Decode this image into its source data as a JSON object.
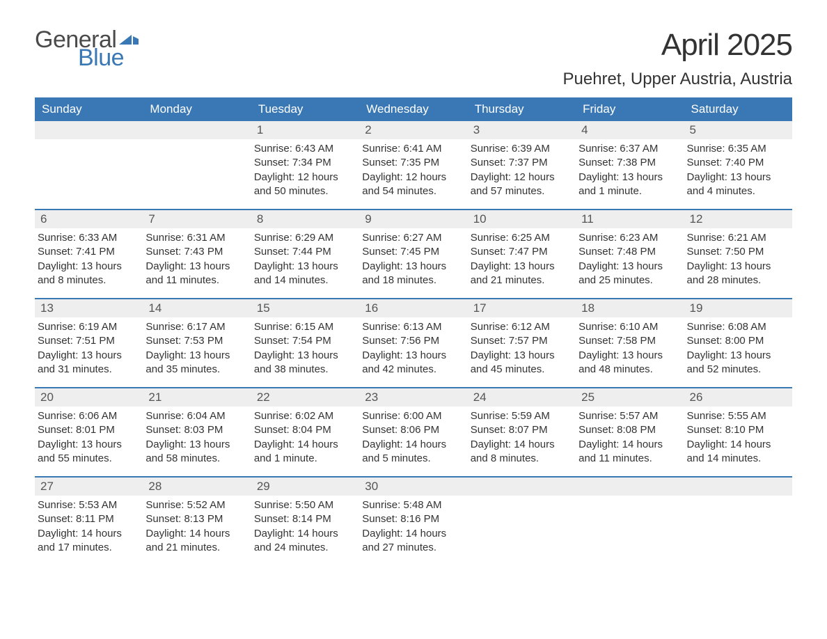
{
  "logo": {
    "text1": "General",
    "text2": "Blue",
    "flag_color": "#3a78b5"
  },
  "title": "April 2025",
  "location": "Puehret, Upper Austria, Austria",
  "colors": {
    "header_bg": "#3a78b5",
    "date_bar_bg": "#eeeeee",
    "text": "#333333",
    "header_text": "#ffffff",
    "week_divider": "#3a78b5"
  },
  "fonts": {
    "body_size": 15,
    "title_size": 44,
    "location_size": 24,
    "header_size": 17,
    "date_size": 17
  },
  "day_names": [
    "Sunday",
    "Monday",
    "Tuesday",
    "Wednesday",
    "Thursday",
    "Friday",
    "Saturday"
  ],
  "weeks": [
    [
      {
        "date": "",
        "lines": []
      },
      {
        "date": "",
        "lines": []
      },
      {
        "date": "1",
        "lines": [
          "Sunrise: 6:43 AM",
          "Sunset: 7:34 PM",
          "Daylight: 12 hours and 50 minutes."
        ]
      },
      {
        "date": "2",
        "lines": [
          "Sunrise: 6:41 AM",
          "Sunset: 7:35 PM",
          "Daylight: 12 hours and 54 minutes."
        ]
      },
      {
        "date": "3",
        "lines": [
          "Sunrise: 6:39 AM",
          "Sunset: 7:37 PM",
          "Daylight: 12 hours and 57 minutes."
        ]
      },
      {
        "date": "4",
        "lines": [
          "Sunrise: 6:37 AM",
          "Sunset: 7:38 PM",
          "Daylight: 13 hours and 1 minute."
        ]
      },
      {
        "date": "5",
        "lines": [
          "Sunrise: 6:35 AM",
          "Sunset: 7:40 PM",
          "Daylight: 13 hours and 4 minutes."
        ]
      }
    ],
    [
      {
        "date": "6",
        "lines": [
          "Sunrise: 6:33 AM",
          "Sunset: 7:41 PM",
          "Daylight: 13 hours and 8 minutes."
        ]
      },
      {
        "date": "7",
        "lines": [
          "Sunrise: 6:31 AM",
          "Sunset: 7:43 PM",
          "Daylight: 13 hours and 11 minutes."
        ]
      },
      {
        "date": "8",
        "lines": [
          "Sunrise: 6:29 AM",
          "Sunset: 7:44 PM",
          "Daylight: 13 hours and 14 minutes."
        ]
      },
      {
        "date": "9",
        "lines": [
          "Sunrise: 6:27 AM",
          "Sunset: 7:45 PM",
          "Daylight: 13 hours and 18 minutes."
        ]
      },
      {
        "date": "10",
        "lines": [
          "Sunrise: 6:25 AM",
          "Sunset: 7:47 PM",
          "Daylight: 13 hours and 21 minutes."
        ]
      },
      {
        "date": "11",
        "lines": [
          "Sunrise: 6:23 AM",
          "Sunset: 7:48 PM",
          "Daylight: 13 hours and 25 minutes."
        ]
      },
      {
        "date": "12",
        "lines": [
          "Sunrise: 6:21 AM",
          "Sunset: 7:50 PM",
          "Daylight: 13 hours and 28 minutes."
        ]
      }
    ],
    [
      {
        "date": "13",
        "lines": [
          "Sunrise: 6:19 AM",
          "Sunset: 7:51 PM",
          "Daylight: 13 hours and 31 minutes."
        ]
      },
      {
        "date": "14",
        "lines": [
          "Sunrise: 6:17 AM",
          "Sunset: 7:53 PM",
          "Daylight: 13 hours and 35 minutes."
        ]
      },
      {
        "date": "15",
        "lines": [
          "Sunrise: 6:15 AM",
          "Sunset: 7:54 PM",
          "Daylight: 13 hours and 38 minutes."
        ]
      },
      {
        "date": "16",
        "lines": [
          "Sunrise: 6:13 AM",
          "Sunset: 7:56 PM",
          "Daylight: 13 hours and 42 minutes."
        ]
      },
      {
        "date": "17",
        "lines": [
          "Sunrise: 6:12 AM",
          "Sunset: 7:57 PM",
          "Daylight: 13 hours and 45 minutes."
        ]
      },
      {
        "date": "18",
        "lines": [
          "Sunrise: 6:10 AM",
          "Sunset: 7:58 PM",
          "Daylight: 13 hours and 48 minutes."
        ]
      },
      {
        "date": "19",
        "lines": [
          "Sunrise: 6:08 AM",
          "Sunset: 8:00 PM",
          "Daylight: 13 hours and 52 minutes."
        ]
      }
    ],
    [
      {
        "date": "20",
        "lines": [
          "Sunrise: 6:06 AM",
          "Sunset: 8:01 PM",
          "Daylight: 13 hours and 55 minutes."
        ]
      },
      {
        "date": "21",
        "lines": [
          "Sunrise: 6:04 AM",
          "Sunset: 8:03 PM",
          "Daylight: 13 hours and 58 minutes."
        ]
      },
      {
        "date": "22",
        "lines": [
          "Sunrise: 6:02 AM",
          "Sunset: 8:04 PM",
          "Daylight: 14 hours and 1 minute."
        ]
      },
      {
        "date": "23",
        "lines": [
          "Sunrise: 6:00 AM",
          "Sunset: 8:06 PM",
          "Daylight: 14 hours and 5 minutes."
        ]
      },
      {
        "date": "24",
        "lines": [
          "Sunrise: 5:59 AM",
          "Sunset: 8:07 PM",
          "Daylight: 14 hours and 8 minutes."
        ]
      },
      {
        "date": "25",
        "lines": [
          "Sunrise: 5:57 AM",
          "Sunset: 8:08 PM",
          "Daylight: 14 hours and 11 minutes."
        ]
      },
      {
        "date": "26",
        "lines": [
          "Sunrise: 5:55 AM",
          "Sunset: 8:10 PM",
          "Daylight: 14 hours and 14 minutes."
        ]
      }
    ],
    [
      {
        "date": "27",
        "lines": [
          "Sunrise: 5:53 AM",
          "Sunset: 8:11 PM",
          "Daylight: 14 hours and 17 minutes."
        ]
      },
      {
        "date": "28",
        "lines": [
          "Sunrise: 5:52 AM",
          "Sunset: 8:13 PM",
          "Daylight: 14 hours and 21 minutes."
        ]
      },
      {
        "date": "29",
        "lines": [
          "Sunrise: 5:50 AM",
          "Sunset: 8:14 PM",
          "Daylight: 14 hours and 24 minutes."
        ]
      },
      {
        "date": "30",
        "lines": [
          "Sunrise: 5:48 AM",
          "Sunset: 8:16 PM",
          "Daylight: 14 hours and 27 minutes."
        ]
      },
      {
        "date": "",
        "lines": []
      },
      {
        "date": "",
        "lines": []
      },
      {
        "date": "",
        "lines": []
      }
    ]
  ]
}
